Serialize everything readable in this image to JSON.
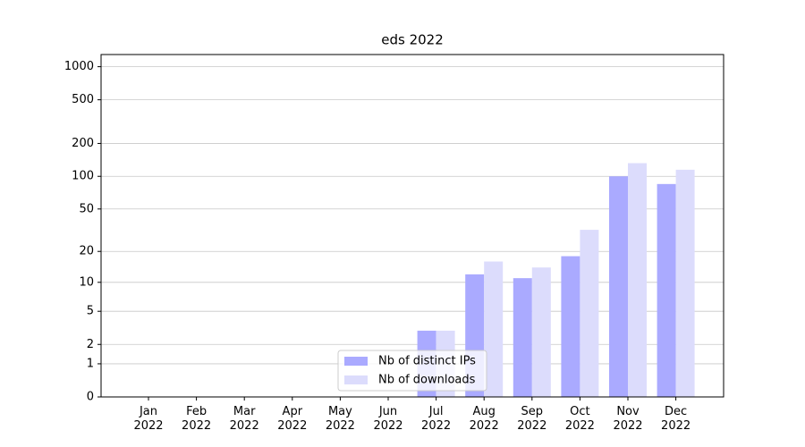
{
  "chart_data": {
    "type": "bar",
    "title": "eds 2022",
    "categories": [
      "Jan 2022",
      "Feb 2022",
      "Mar 2022",
      "Apr 2022",
      "May 2022",
      "Jun 2022",
      "Jul 2022",
      "Aug 2022",
      "Sep 2022",
      "Oct 2022",
      "Nov 2022",
      "Dec 2022"
    ],
    "series": [
      {
        "name": "Nb of distinct IPs",
        "color": "#aaaaff",
        "values": [
          0,
          0,
          0,
          0,
          0,
          0,
          3,
          12,
          11,
          18,
          100,
          85
        ]
      },
      {
        "name": "Nb of downloads",
        "color": "#dcdcfc",
        "values": [
          0,
          0,
          0,
          0,
          0,
          0,
          3,
          16,
          14,
          32,
          132,
          115
        ]
      }
    ],
    "yscale": "symlog",
    "ylim": [
      0,
      1290
    ],
    "yticks": [
      0,
      1,
      2,
      5,
      10,
      20,
      50,
      100,
      200,
      500,
      1000
    ],
    "grid": true,
    "legend": "lower center"
  }
}
